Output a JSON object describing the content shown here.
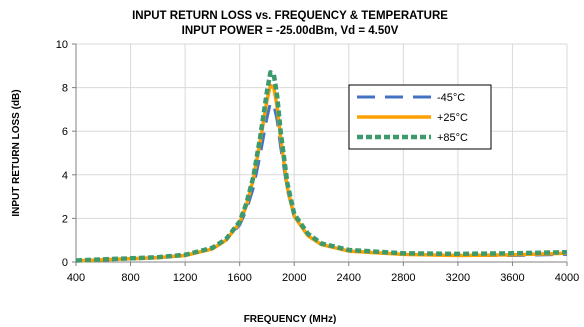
{
  "chart_data": {
    "type": "line",
    "title": "INPUT RETURN LOSS vs. FREQUENCY & TEMPERATURE",
    "subtitle": "INPUT POWER = -25.00dBm, Vd = 4.50V",
    "xlabel": "FREQUENCY (MHz)",
    "ylabel": "INPUT RETURN LOSS (dB)",
    "xlim": [
      400,
      4000
    ],
    "ylim": [
      0,
      10
    ],
    "x_ticks": [
      400,
      800,
      1200,
      1600,
      2000,
      2400,
      2800,
      3200,
      3600,
      4000
    ],
    "y_ticks": [
      0,
      2,
      4,
      6,
      8,
      10
    ],
    "grid": true,
    "legend_position": "right",
    "x": [
      400,
      600,
      800,
      1000,
      1200,
      1400,
      1500,
      1600,
      1650,
      1700,
      1750,
      1800,
      1825,
      1850,
      1875,
      1900,
      1950,
      2000,
      2100,
      2200,
      2400,
      2800,
      3200,
      3600,
      4000
    ],
    "series": [
      {
        "name": "-45°C",
        "color": "#4472c4",
        "dash": "long-dash",
        "values": [
          0.05,
          0.1,
          0.15,
          0.2,
          0.3,
          0.6,
          1.0,
          1.7,
          2.4,
          3.4,
          4.9,
          6.6,
          7.3,
          7.2,
          6.5,
          5.3,
          3.3,
          2.1,
          1.2,
          0.8,
          0.5,
          0.35,
          0.3,
          0.3,
          0.35
        ]
      },
      {
        "name": "+25°C",
        "color": "#ffa000",
        "dash": "solid",
        "values": [
          0.05,
          0.1,
          0.15,
          0.2,
          0.3,
          0.6,
          1.0,
          1.8,
          2.6,
          3.8,
          5.5,
          7.4,
          8.1,
          8.0,
          7.1,
          5.7,
          3.4,
          2.1,
          1.2,
          0.8,
          0.5,
          0.35,
          0.3,
          0.33,
          0.4
        ]
      },
      {
        "name": "+85°C",
        "color": "#3c9a6c",
        "dash": "dotted",
        "values": [
          0.07,
          0.12,
          0.17,
          0.22,
          0.33,
          0.65,
          1.05,
          1.85,
          2.7,
          3.9,
          5.7,
          7.8,
          8.7,
          8.6,
          7.6,
          6.0,
          3.6,
          2.2,
          1.3,
          0.85,
          0.55,
          0.4,
          0.37,
          0.4,
          0.45
        ]
      }
    ]
  }
}
